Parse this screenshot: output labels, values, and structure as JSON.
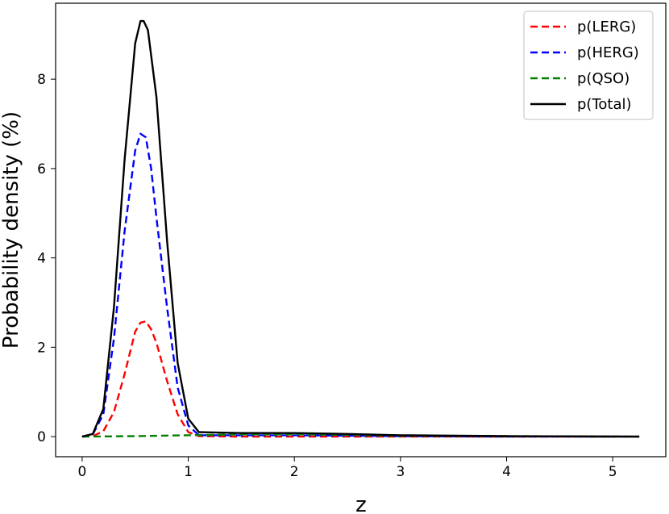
{
  "chart_data": {
    "type": "line",
    "xlabel": "z",
    "ylabel": "Probability density (%)",
    "xlim": [
      -0.25,
      5.5
    ],
    "ylim": [
      -0.45,
      9.7
    ],
    "xticks": [
      0,
      1,
      2,
      3,
      4,
      5
    ],
    "yticks": [
      0,
      2,
      4,
      6,
      8
    ],
    "grid": false,
    "legend_position": "top-right",
    "series": [
      {
        "name": "p(LERG)",
        "color": "#ff0000",
        "style": "dashed",
        "x": [
          0,
          0.1,
          0.2,
          0.3,
          0.4,
          0.5,
          0.55,
          0.6,
          0.65,
          0.7,
          0.8,
          0.9,
          1.0,
          1.1,
          1.5,
          2.0,
          3.0,
          4.0,
          5.25
        ],
        "y": [
          0.0,
          0.01,
          0.12,
          0.55,
          1.4,
          2.35,
          2.55,
          2.58,
          2.4,
          2.1,
          1.25,
          0.5,
          0.1,
          0.01,
          0.0,
          0.0,
          0.0,
          0.0,
          0.0
        ]
      },
      {
        "name": "p(HERG)",
        "color": "#0000ff",
        "style": "dashed",
        "x": [
          0,
          0.1,
          0.2,
          0.3,
          0.4,
          0.5,
          0.55,
          0.6,
          0.65,
          0.7,
          0.8,
          0.9,
          1.0,
          1.1,
          1.5,
          2.0,
          2.5,
          3.0,
          4.0,
          5.25
        ],
        "y": [
          0.0,
          0.05,
          0.5,
          2.2,
          4.6,
          6.4,
          6.78,
          6.7,
          6.0,
          4.9,
          2.9,
          1.1,
          0.25,
          0.03,
          0.03,
          0.03,
          0.02,
          0.01,
          0.0,
          0.0
        ]
      },
      {
        "name": "p(QSO)",
        "color": "#008000",
        "style": "dashed",
        "x": [
          0,
          0.5,
          1.0,
          1.5,
          2.0,
          2.5,
          3.0,
          4.0,
          5.25
        ],
        "y": [
          0.0,
          0.01,
          0.03,
          0.05,
          0.05,
          0.04,
          0.02,
          0.01,
          0.0
        ]
      },
      {
        "name": "p(Total)",
        "color": "#000000",
        "style": "solid",
        "x": [
          0,
          0.1,
          0.2,
          0.3,
          0.4,
          0.5,
          0.55,
          0.58,
          0.62,
          0.7,
          0.8,
          0.9,
          1.0,
          1.1,
          1.5,
          2.0,
          2.5,
          3.0,
          4.0,
          5.25
        ],
        "y": [
          0.0,
          0.06,
          0.62,
          2.9,
          6.2,
          8.8,
          9.3,
          9.3,
          9.1,
          7.6,
          4.4,
          1.65,
          0.4,
          0.1,
          0.08,
          0.08,
          0.06,
          0.03,
          0.01,
          0.0
        ]
      }
    ]
  }
}
